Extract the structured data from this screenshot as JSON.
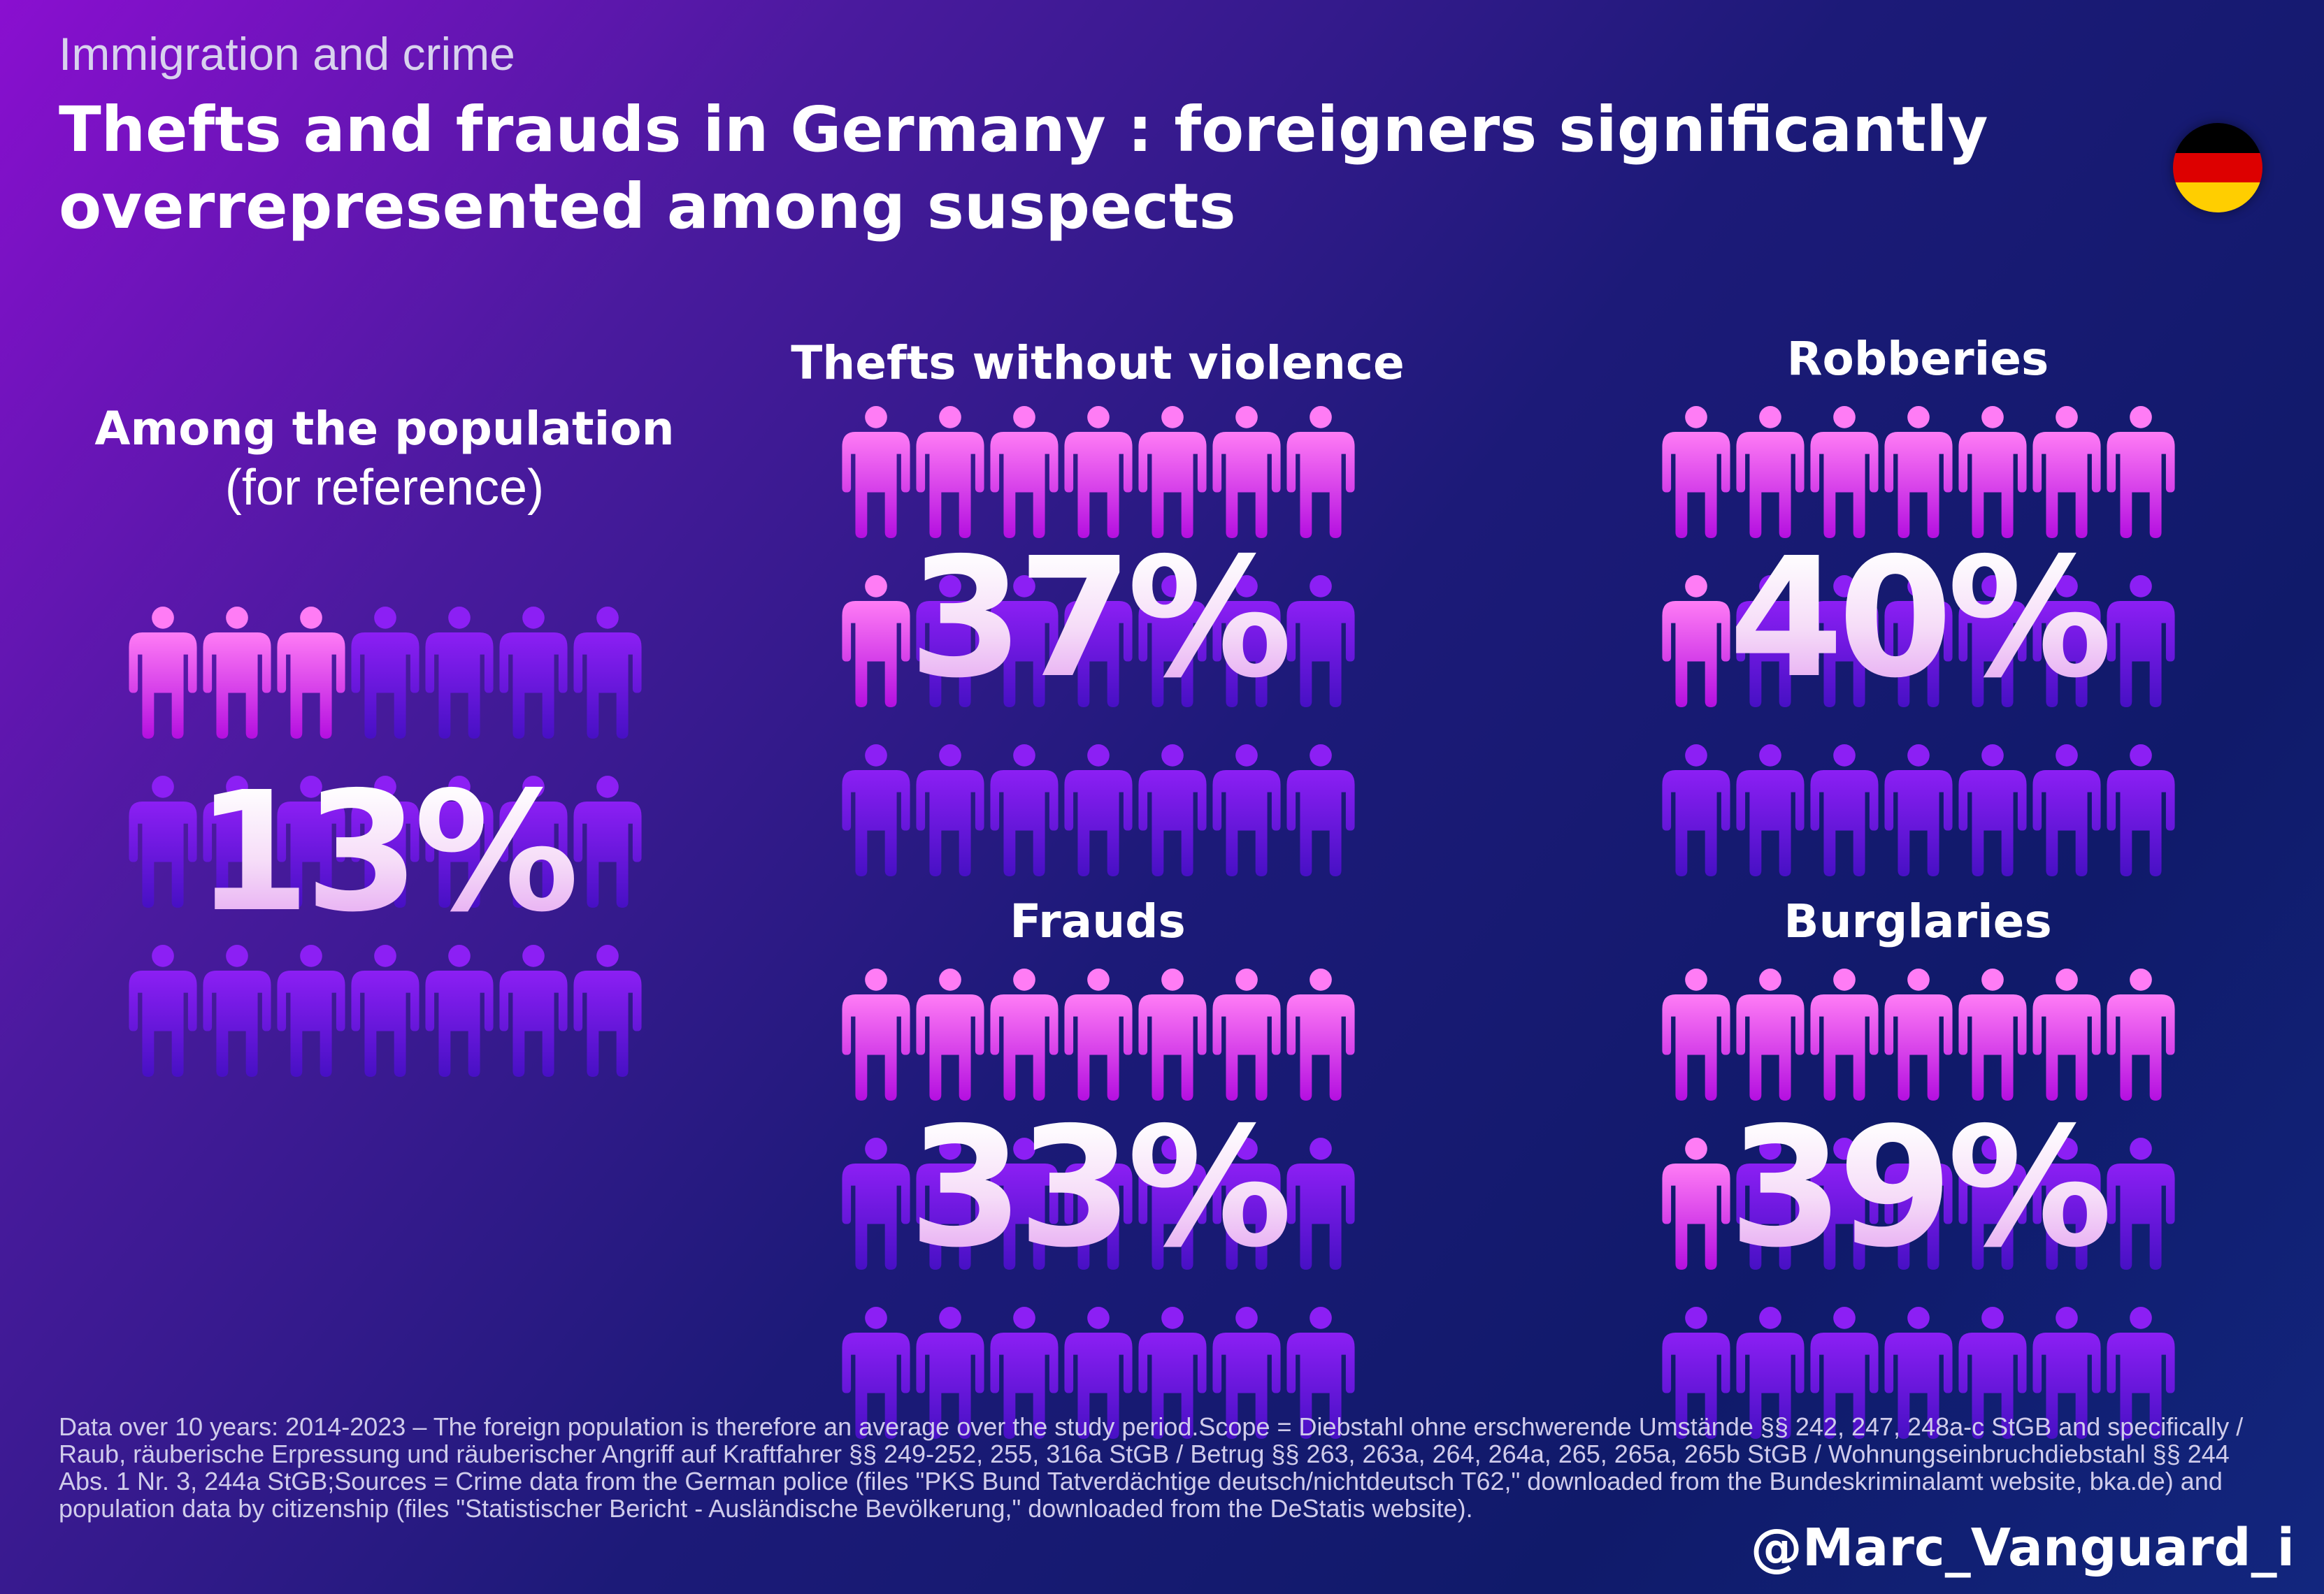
{
  "header": {
    "subtitle": "Immigration and crime",
    "title": "Thefts and frauds in Germany : foreigners significantly overrepresented among suspects"
  },
  "flag": {
    "icon": "germany-flag-icon",
    "colors": [
      "#000000",
      "#dd0000",
      "#ffce00"
    ]
  },
  "colors": {
    "highlight_top": "#ff7cf5",
    "highlight_bottom": "#b40fe0",
    "base_top": "#8c1ff4",
    "base_bottom": "#4710c4"
  },
  "chart_data": [
    {
      "type": "pictograph",
      "icon": "person-icon",
      "title": "Among the population",
      "subtitle": "(for reference)",
      "value_label": "13%",
      "value": 13,
      "total_icons": 21,
      "highlighted_icons": 3
    },
    {
      "type": "pictograph",
      "icon": "person-icon",
      "title": "Thefts without violence",
      "value_label": "37%",
      "value": 37,
      "total_icons": 21,
      "highlighted_icons": 8
    },
    {
      "type": "pictograph",
      "icon": "person-icon",
      "title": "Robberies",
      "value_label": "40%",
      "value": 40,
      "total_icons": 21,
      "highlighted_icons": 8
    },
    {
      "type": "pictograph",
      "icon": "person-icon",
      "title": "Frauds",
      "value_label": "33%",
      "value": 33,
      "total_icons": 21,
      "highlighted_icons": 7
    },
    {
      "type": "pictograph",
      "icon": "person-icon",
      "title": "Burglaries",
      "value_label": "39%",
      "value": 39,
      "total_icons": 21,
      "highlighted_icons": 8
    }
  ],
  "footer": {
    "note": "Data over 10 years: 2014-2023 – The foreign population is therefore an average over the study period.Scope = Diebstahl ohne erschwerende Umstände §§ 242, 247, 248a-c StGB and specifically / Raub, räuberische Erpressung und räuberischer Angriff auf Kraftfahrer §§ 249-252, 255, 316a StGB / Betrug §§ 263, 263a, 264, 264a, 265, 265a, 265b StGB / Wohnungseinbruchdiebstahl §§ 244 Abs. 1 Nr. 3, 244a StGB;Sources = Crime data from the German police (files \"PKS Bund Tatverdächtige deutsch/nichtdeutsch T62,\" downloaded from the Bundeskriminalamt website, bka.de) and population data by citizenship (files \"Statistischer Bericht - Ausländische Bevölkerung,\" downloaded from the DeStatis website).",
    "handle": "@Marc_Vanguard_i"
  }
}
